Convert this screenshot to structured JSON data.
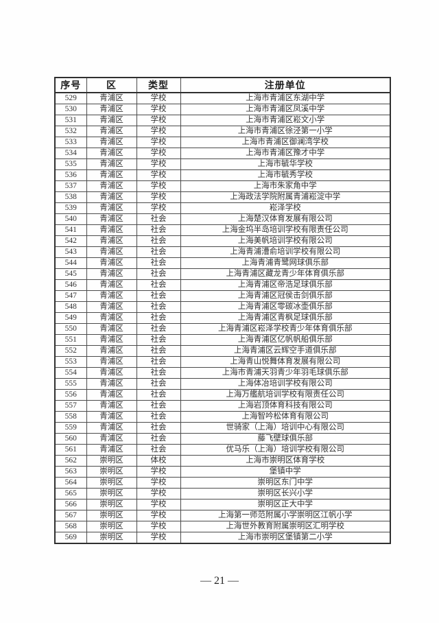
{
  "table": {
    "columns": [
      "序号",
      "区",
      "类型",
      "注册单位"
    ],
    "rows": [
      [
        "529",
        "青浦区",
        "学校",
        "上海市青浦区东湖中学"
      ],
      [
        "530",
        "青浦区",
        "学校",
        "上海市青浦区凤溪中学"
      ],
      [
        "531",
        "青浦区",
        "学校",
        "上海市青浦区崧文小学"
      ],
      [
        "532",
        "青浦区",
        "学校",
        "上海市青浦区徐泾第一小学"
      ],
      [
        "533",
        "青浦区",
        "学校",
        "上海市青浦区御澜湾学校"
      ],
      [
        "534",
        "青浦区",
        "学校",
        "上海市青浦区豫才中学"
      ],
      [
        "535",
        "青浦区",
        "学校",
        "上海市毓华学校"
      ],
      [
        "536",
        "青浦区",
        "学校",
        "上海市毓秀学校"
      ],
      [
        "537",
        "青浦区",
        "学校",
        "上海市朱家角中学"
      ],
      [
        "538",
        "青浦区",
        "学校",
        "上海政法学院附属青浦崧淀中学"
      ],
      [
        "539",
        "青浦区",
        "学校",
        "崧泽学校"
      ],
      [
        "540",
        "青浦区",
        "社会",
        "上海楚汉体育发展有限公司"
      ],
      [
        "541",
        "青浦区",
        "社会",
        "上海金坞半岛培训学校有限责任公司"
      ],
      [
        "542",
        "青浦区",
        "社会",
        "上海美帆培训学校有限公司"
      ],
      [
        "543",
        "青浦区",
        "社会",
        "上海青浦漕俞培训学校有限公司"
      ],
      [
        "544",
        "青浦区",
        "社会",
        "上海青浦青鹭网球俱乐部"
      ],
      [
        "545",
        "青浦区",
        "社会",
        "上海青浦区藏龙青少年体育俱乐部"
      ],
      [
        "546",
        "青浦区",
        "社会",
        "上海青浦区帝浩足球俱乐部"
      ],
      [
        "547",
        "青浦区",
        "社会",
        "上海青浦区冠侯击剑俱乐部"
      ],
      [
        "548",
        "青浦区",
        "社会",
        "上海青浦区零碳冰壶俱乐部"
      ],
      [
        "549",
        "青浦区",
        "社会",
        "上海青浦区青枫足球俱乐部"
      ],
      [
        "550",
        "青浦区",
        "社会",
        "上海青浦区崧泽学校青少年体育俱乐部"
      ],
      [
        "551",
        "青浦区",
        "社会",
        "上海青浦区亿帆帆船俱乐部"
      ],
      [
        "552",
        "青浦区",
        "社会",
        "上海青浦区云辉空手道俱乐部"
      ],
      [
        "553",
        "青浦区",
        "社会",
        "上海青山悦舞体育发展有限公司"
      ],
      [
        "554",
        "青浦区",
        "社会",
        "上海市青浦天羽青少年羽毛球俱乐部"
      ],
      [
        "555",
        "青浦区",
        "社会",
        "上海体冶培训学校有限公司"
      ],
      [
        "556",
        "青浦区",
        "社会",
        "上海万艦航培训学校有限责任公司"
      ],
      [
        "557",
        "青浦区",
        "社会",
        "上海岩顶体育科技有限公司"
      ],
      [
        "558",
        "青浦区",
        "社会",
        "上海智吟松体育有限公司"
      ],
      [
        "559",
        "青浦区",
        "社会",
        "世骑家（上海）培训中心有限公司"
      ],
      [
        "560",
        "青浦区",
        "社会",
        "藤飞壁球俱乐部"
      ],
      [
        "561",
        "青浦区",
        "社会",
        "优马乐（上海）培训学校有限公司"
      ],
      [
        "562",
        "崇明区",
        "体校",
        "上海市崇明区体育学校"
      ],
      [
        "563",
        "崇明区",
        "学校",
        "堡镇中学"
      ],
      [
        "564",
        "崇明区",
        "学校",
        "崇明区东门中学"
      ],
      [
        "565",
        "崇明区",
        "学校",
        "崇明区长兴小学"
      ],
      [
        "566",
        "崇明区",
        "学校",
        "崇明区正大中学"
      ],
      [
        "567",
        "崇明区",
        "学校",
        "上海第一师范附属小学崇明区江帆小学"
      ],
      [
        "568",
        "崇明区",
        "学校",
        "上海世外教育附属崇明区汇明学校"
      ],
      [
        "569",
        "崇明区",
        "学校",
        "上海市崇明区堡镇第二小学"
      ]
    ]
  },
  "footer": {
    "page_number": "— 21 —"
  }
}
